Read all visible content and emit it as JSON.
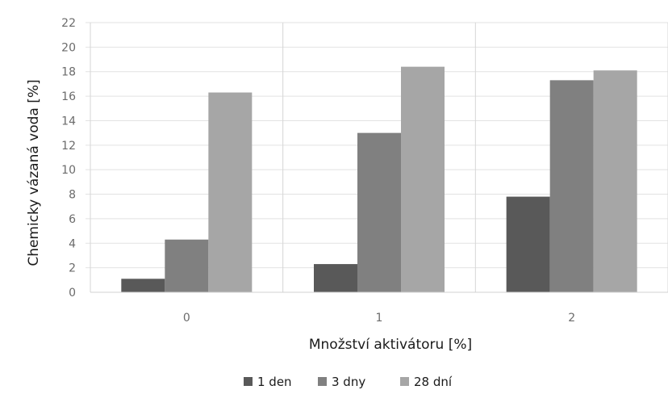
{
  "chart_data": {
    "type": "bar",
    "categories": [
      "0",
      "1",
      "2"
    ],
    "series": [
      {
        "name": "1 den",
        "values": [
          1.1,
          2.3,
          7.8
        ],
        "color": "#595959"
      },
      {
        "name": "3 dny",
        "values": [
          4.3,
          13.0,
          17.3
        ],
        "color": "#808080"
      },
      {
        "name": "28 dní",
        "values": [
          16.3,
          18.4,
          18.1
        ],
        "color": "#a6a6a6"
      }
    ],
    "title": "",
    "xlabel": "Množství aktivátoru [%]",
    "ylabel": "Chemicky vázaná voda [%]",
    "ylim": [
      0,
      22
    ],
    "yticks": [
      "0",
      "2",
      "4",
      "6",
      "8",
      "10",
      "12",
      "14",
      "16",
      "18",
      "20",
      "22"
    ],
    "grid": "vertical category separators",
    "legend_position": "bottom"
  }
}
